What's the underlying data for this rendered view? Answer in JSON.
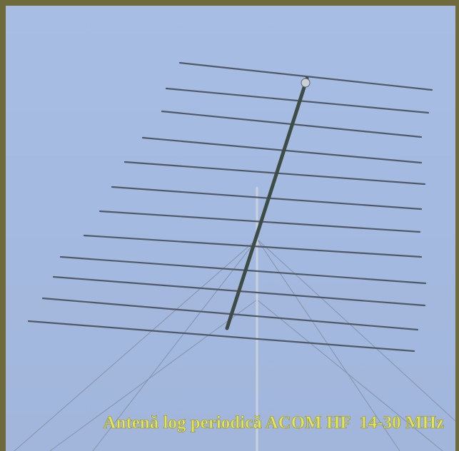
{
  "caption": "Antenă log periodică ACOM HF  14-30 MHz"
}
